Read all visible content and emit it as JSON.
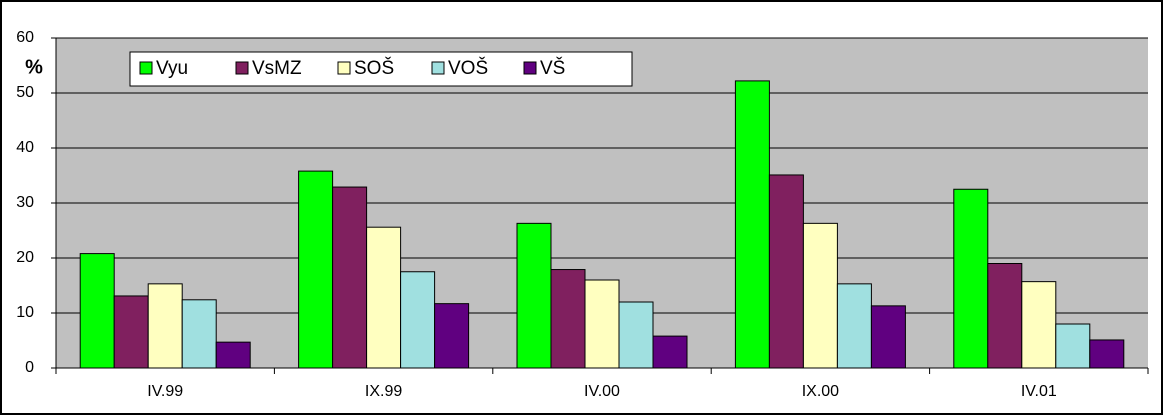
{
  "chart_data": {
    "type": "bar",
    "y_label": "%",
    "categories": [
      "IV.99",
      "IX.99",
      "IV.00",
      "IX.00",
      "IV.01"
    ],
    "series": [
      {
        "name": "Vyu",
        "color": "#00ff00",
        "values": [
          20.8,
          35.8,
          26.3,
          52.2,
          32.5
        ]
      },
      {
        "name": "VsMZ",
        "color": "#80205f",
        "values": [
          13.1,
          32.9,
          17.9,
          35.1,
          19.0
        ]
      },
      {
        "name": "SOŠ",
        "color": "#ffffc0",
        "values": [
          15.3,
          25.6,
          16.0,
          26.3,
          15.7
        ]
      },
      {
        "name": "VOŠ",
        "color": "#a0e0e0",
        "values": [
          12.4,
          17.5,
          12.0,
          15.3,
          8.0
        ]
      },
      {
        "name": "VŠ",
        "color": "#600080",
        "values": [
          4.7,
          11.7,
          5.8,
          11.3,
          5.1
        ]
      }
    ],
    "ylim": [
      0,
      60
    ],
    "yticks": [
      0,
      10,
      20,
      30,
      40,
      50,
      60
    ],
    "grid": true,
    "legend": "top-left"
  }
}
